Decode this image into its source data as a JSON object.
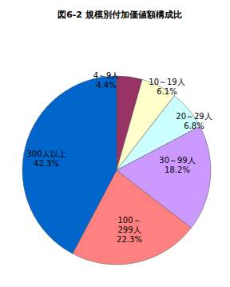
{
  "chart_data": {
    "type": "pie",
    "title": "図6-2 規模別付加価値額構成比",
    "categories": [
      "4～9人",
      "10～19人",
      "20～29人",
      "30～99人",
      "100～299人",
      "300人以上"
    ],
    "values": [
      4.4,
      6.1,
      6.8,
      18.2,
      22.3,
      42.3
    ],
    "value_labels": [
      "4.4%",
      "6.1%",
      "6.8%",
      "18.2%",
      "22.3%",
      "42.3%"
    ],
    "colors": [
      "#993366",
      "#ffffcc",
      "#ccffff",
      "#cc99ff",
      "#ff8080",
      "#0066cc"
    ],
    "data_labels": true
  }
}
